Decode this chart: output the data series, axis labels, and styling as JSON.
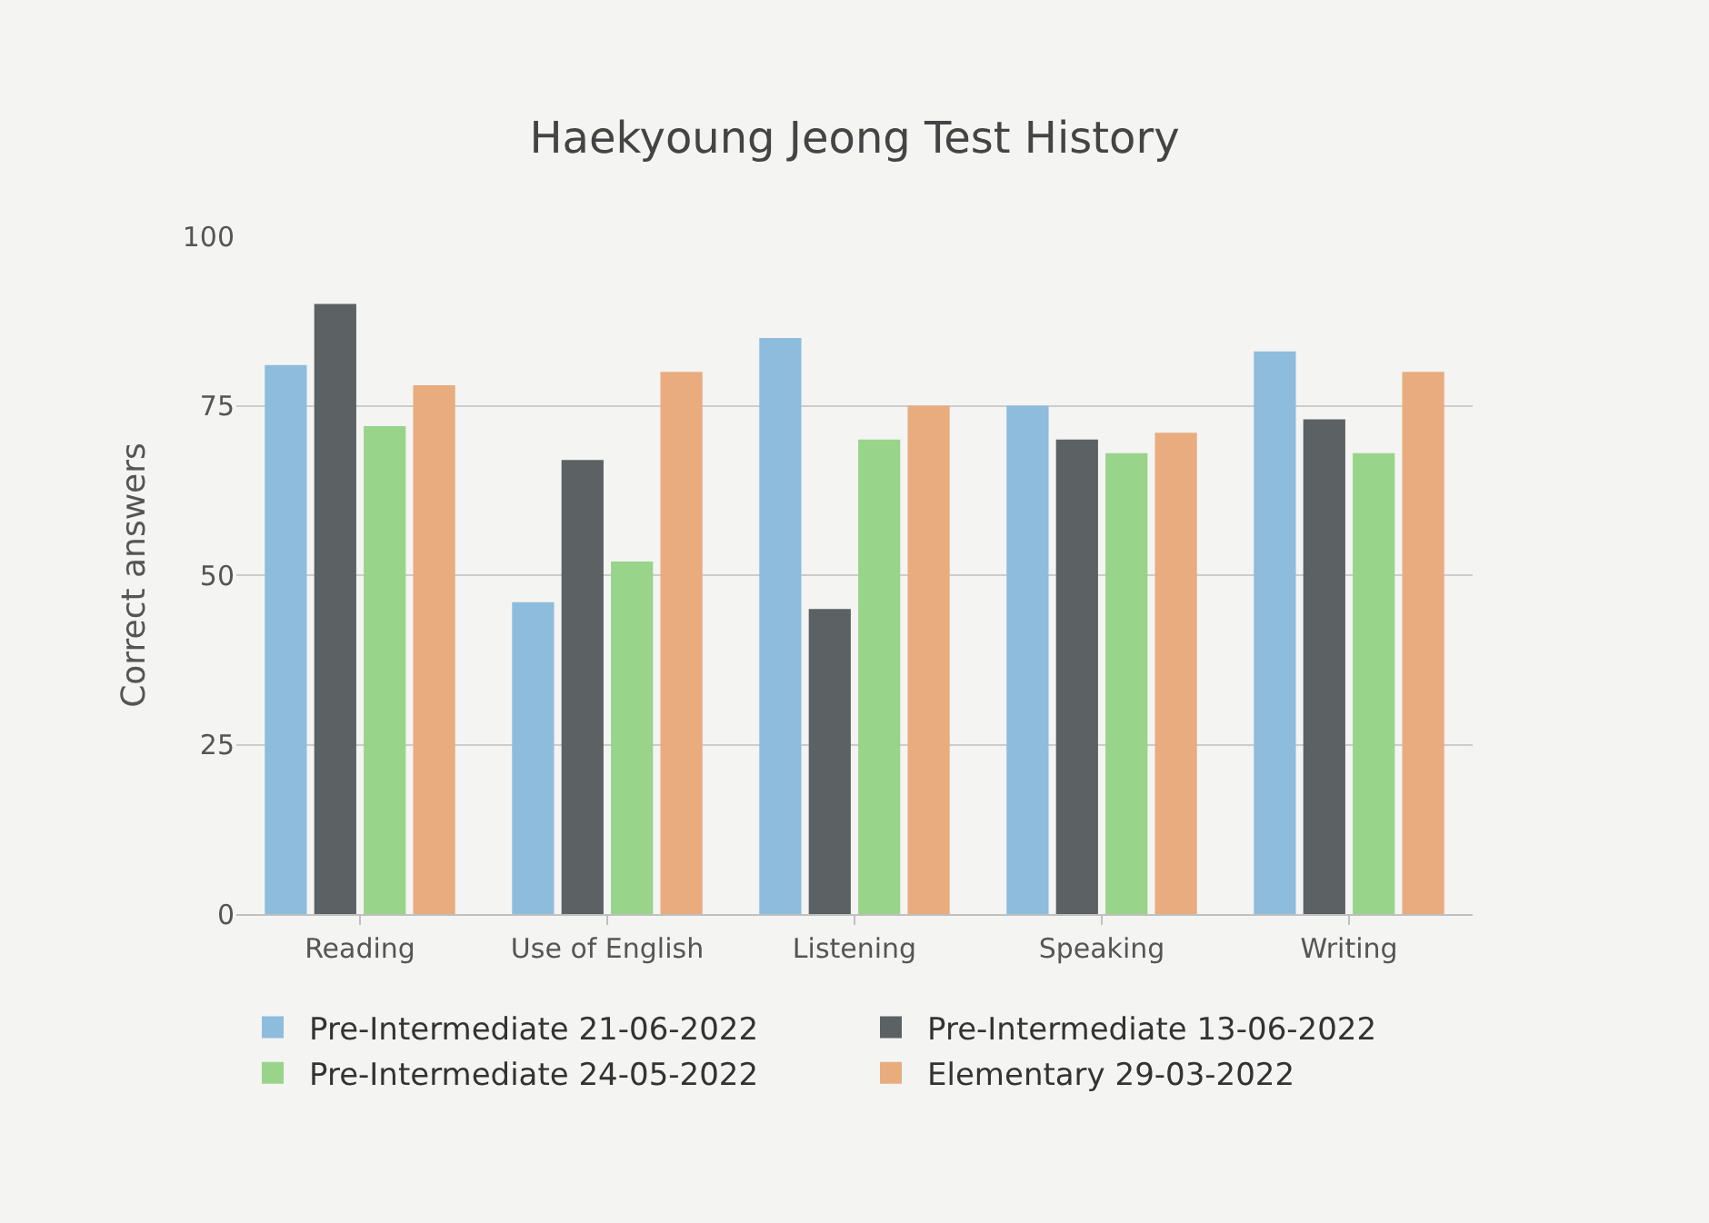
{
  "chart_data": {
    "type": "bar",
    "title": "Haekyoung Jeong Test History",
    "ylabel": "Correct answers",
    "categories": [
      "Reading",
      "Use of English",
      "Listening",
      "Speaking",
      "Writing"
    ],
    "series": [
      {
        "name": "Pre-Intermediate 21-06-2022",
        "color": "#8ebcdc",
        "values": [
          81,
          46,
          85,
          75,
          83
        ]
      },
      {
        "name": "Pre-Intermediate 13-06-2022",
        "color": "#5c6164",
        "values": [
          90,
          67,
          45,
          70,
          73
        ]
      },
      {
        "name": "Pre-Intermediate 24-05-2022",
        "color": "#98d48a",
        "values": [
          72,
          52,
          70,
          68,
          68
        ]
      },
      {
        "name": "Elementary 29-03-2022",
        "color": "#e8ac7e",
        "values": [
          78,
          80,
          75,
          71,
          80
        ]
      }
    ],
    "ylim": [
      0,
      100
    ],
    "yticks": [
      0,
      25,
      50,
      75,
      100
    ],
    "grid": "y",
    "legend": "bottom"
  }
}
